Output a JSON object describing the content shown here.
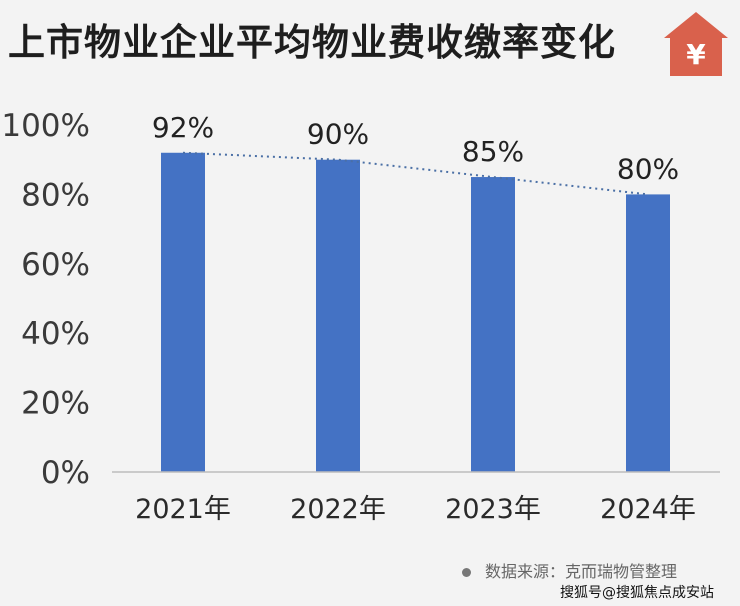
{
  "title": "上市物业企业平均物业费收缴率变化",
  "logo": {
    "glyph": "¥",
    "color": "#d9614c"
  },
  "source": "数据来源：克而瑞物管整理",
  "credit": "搜狐号@搜狐焦点成安站",
  "colors": {
    "bar": "#4472c4",
    "trend": "#4a6fa5"
  },
  "chart_data": {
    "type": "bar",
    "categories": [
      "2021年",
      "2022年",
      "2023年",
      "2024年"
    ],
    "values": [
      92,
      90,
      85,
      80
    ],
    "data_labels": [
      "92%",
      "90%",
      "85%",
      "80%"
    ],
    "ylim": [
      0,
      100
    ],
    "yticks": [
      0,
      20,
      40,
      60,
      80,
      100
    ],
    "ytick_labels": [
      "0%",
      "20%",
      "40%",
      "60%",
      "80%",
      "100%"
    ],
    "trendline": "dotted",
    "grid": false,
    "legend": "none"
  }
}
